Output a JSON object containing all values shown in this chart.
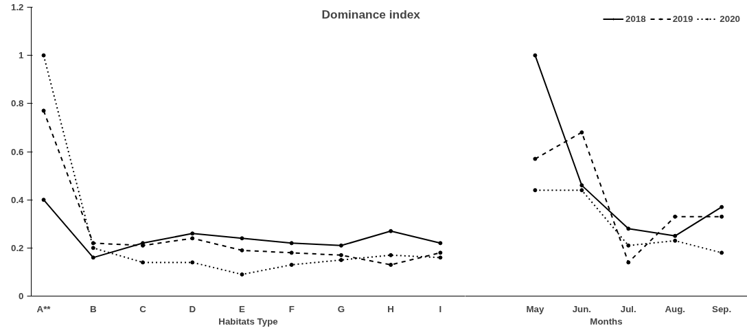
{
  "chart_data": [
    {
      "type": "line",
      "title": "Dominance index",
      "xlabel": "Habitats Type",
      "categories": [
        "A**",
        "B",
        "C",
        "D",
        "E",
        "F",
        "G",
        "H",
        "I"
      ],
      "ylim": [
        0,
        1.2
      ],
      "yticks": [
        0,
        0.2,
        0.4,
        0.6,
        0.8,
        1,
        1.2
      ],
      "grid": false,
      "legend": false,
      "marker": "circle",
      "series": [
        {
          "color": "#000000",
          "line_style": "solid",
          "values": [
            0.4,
            0.16,
            0.22,
            0.26,
            0.24,
            0.22,
            0.21,
            0.27,
            0.22
          ]
        },
        {
          "color": "#000000",
          "line_style": "dashed",
          "values": [
            0.77,
            0.22,
            0.21,
            0.24,
            0.19,
            0.18,
            0.17,
            0.13,
            0.18
          ]
        },
        {
          "color": "#000000",
          "line_style": "dotted",
          "values": [
            1.0,
            0.2,
            0.14,
            0.14,
            0.09,
            0.13,
            0.15,
            0.17,
            0.16
          ]
        }
      ]
    },
    {
      "type": "line",
      "xlabel": "Months",
      "categories": [
        "May",
        "Jun.",
        "Jul.",
        "Aug.",
        "Sep."
      ],
      "ylim": [
        0,
        1.2
      ],
      "tick_labels": "x",
      "grid": false,
      "legend": "top right",
      "marker": "circle",
      "series": [
        {
          "name": "2018",
          "color": "#000000",
          "line_style": "solid",
          "values": [
            1.0,
            0.46,
            0.28,
            0.25,
            0.37
          ]
        },
        {
          "name": "2019",
          "color": "#000000",
          "line_style": "dashed",
          "values": [
            0.57,
            0.68,
            0.14,
            0.33,
            0.33
          ]
        },
        {
          "name": "2020",
          "color": "#000000",
          "line_style": "dotted",
          "values": [
            0.44,
            0.44,
            0.21,
            0.23,
            0.18
          ]
        }
      ]
    }
  ]
}
